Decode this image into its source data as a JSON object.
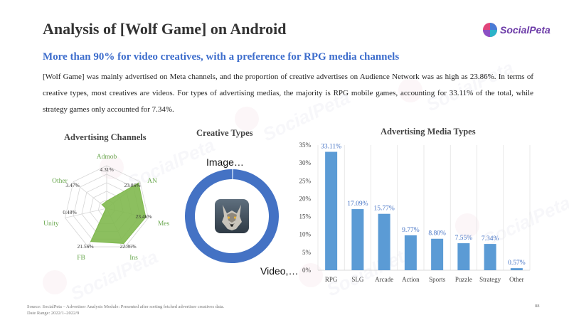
{
  "header": {
    "title": "Analysis of [Wolf Game] on Android",
    "brand": "SocialPeta"
  },
  "headline": "More than 90% for video creatives, with a preference for RPG media channels",
  "description": "[Wolf Game] was mainly advertised on Meta channels, and the proportion of creative advertises on Audience Network was as high as 23.86%. In terms of creative types, most creatives are videos. For types of advertising medias, the majority is RPG mobile games, accounting for 33.11% of the total, while strategy games only accounted for 7.34%.",
  "watermark_text": "SocialPeta",
  "footer": {
    "source": "Source: SocialPeta – Advertiser Analysis Module: Presented after sorting fetched advertiser creatives data.",
    "date_range": "Date Range: 2022/1–2022/9",
    "page": "88"
  },
  "colors": {
    "title_blue": "#3d6dcc",
    "radar_fill": "#7fb84e",
    "radar_label": "#6aa84f",
    "donut": "#4472c4",
    "bar": "#5b9bd5",
    "bar_label": "#4472c4"
  },
  "chart_data": [
    {
      "type": "radar",
      "title": "Advertising Channels",
      "axes": [
        "Admob",
        "AN",
        "Mes",
        "Ins",
        "FB",
        "Unity",
        "Other"
      ],
      "values": [
        4.31,
        23.86,
        23.46,
        22.86,
        21.56,
        0.48,
        3.47
      ],
      "value_labels": [
        "4.31%",
        "23.86%",
        "23.46%",
        "22.86%",
        "21.56%",
        "0.48%",
        "3.47%"
      ],
      "rmax": 25,
      "rings": 5
    },
    {
      "type": "donut",
      "title": "Creative Types",
      "segments": [
        {
          "label": "Image…",
          "value": 0.5
        },
        {
          "label": "Video,…",
          "value": 99.5
        }
      ],
      "icon": "wolf-game-icon"
    },
    {
      "type": "bar",
      "title": "Advertising Media Types",
      "categories": [
        "RPG",
        "SLG",
        "Arcade",
        "Action",
        "Sports",
        "Puzzle",
        "Strategy",
        "Other"
      ],
      "values": [
        33.11,
        17.09,
        15.77,
        9.77,
        8.8,
        7.55,
        7.34,
        0.57
      ],
      "value_labels": [
        "33.11%",
        "17.09%",
        "15.77%",
        "9.77%",
        "8.80%",
        "7.55%",
        "7.34%",
        "0.57%"
      ],
      "ylim": [
        0,
        35
      ],
      "yticks": [
        "0%",
        "5%",
        "10%",
        "15%",
        "20%",
        "25%",
        "30%",
        "35%"
      ],
      "grid": "vertical"
    }
  ]
}
